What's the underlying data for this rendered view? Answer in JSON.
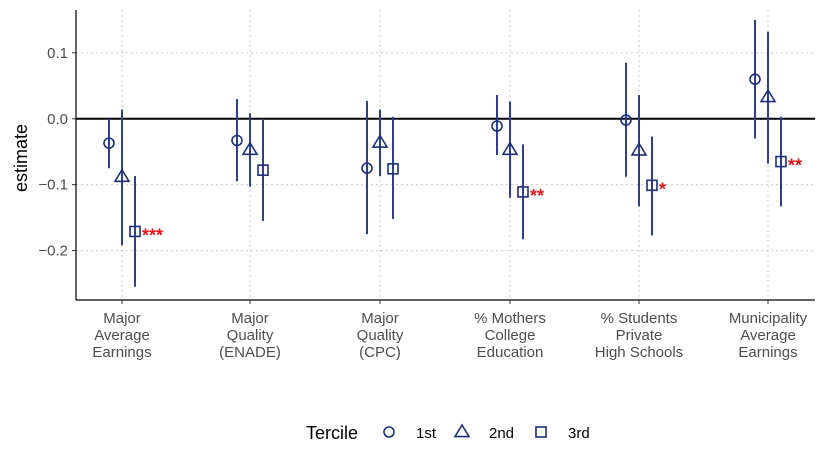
{
  "chart_data": {
    "type": "scatter",
    "ylabel": "estimate",
    "ylim": [
      -0.275,
      0.165
    ],
    "yticks": [
      0.1,
      0.0,
      -0.1,
      -0.2
    ],
    "ytick_labels": [
      "0.1",
      "0.0",
      "−0.1",
      "−0.2"
    ],
    "categories": [
      [
        "Major",
        "Average",
        "Earnings"
      ],
      [
        "Major",
        "Quality",
        "(ENADE)"
      ],
      [
        "Major",
        "Quality",
        "(CPC)"
      ],
      [
        "% Mothers",
        "College",
        "Education"
      ],
      [
        "% Students",
        "Private",
        "High Schools"
      ],
      [
        "Municipality",
        "Average",
        "Earnings"
      ]
    ],
    "legend": {
      "title": "Tercile",
      "entries": [
        {
          "label": "1st",
          "shape": "circle"
        },
        {
          "label": "2nd",
          "shape": "triangle"
        },
        {
          "label": "3rd",
          "shape": "square"
        }
      ]
    },
    "series": [
      {
        "name": "1st",
        "shape": "circle",
        "estimates": [
          -0.037,
          -0.033,
          -0.075,
          -0.011,
          -0.002,
          0.06
        ],
        "ci_low": [
          -0.075,
          -0.095,
          -0.175,
          -0.055,
          -0.088,
          -0.03
        ],
        "ci_high": [
          0.0,
          0.03,
          0.027,
          0.036,
          0.085,
          0.15
        ],
        "significance": [
          "",
          "",
          "",
          "",
          "",
          ""
        ]
      },
      {
        "name": "2nd",
        "shape": "triangle",
        "estimates": [
          -0.088,
          -0.047,
          -0.036,
          -0.047,
          -0.048,
          0.033
        ],
        "ci_low": [
          -0.192,
          -0.103,
          -0.087,
          -0.12,
          -0.133,
          -0.068
        ],
        "ci_high": [
          0.014,
          0.008,
          0.014,
          0.026,
          0.036,
          0.132
        ],
        "significance": [
          "",
          "",
          "",
          "",
          "",
          ""
        ]
      },
      {
        "name": "3rd",
        "shape": "square",
        "estimates": [
          -0.171,
          -0.078,
          -0.076,
          -0.111,
          -0.101,
          -0.065
        ],
        "ci_low": [
          -0.255,
          -0.155,
          -0.152,
          -0.183,
          -0.177,
          -0.133
        ],
        "ci_high": [
          -0.087,
          0.0,
          0.003,
          -0.039,
          -0.027,
          0.003
        ],
        "significance": [
          "***",
          "",
          "",
          "**",
          "*",
          "**"
        ]
      }
    ]
  }
}
